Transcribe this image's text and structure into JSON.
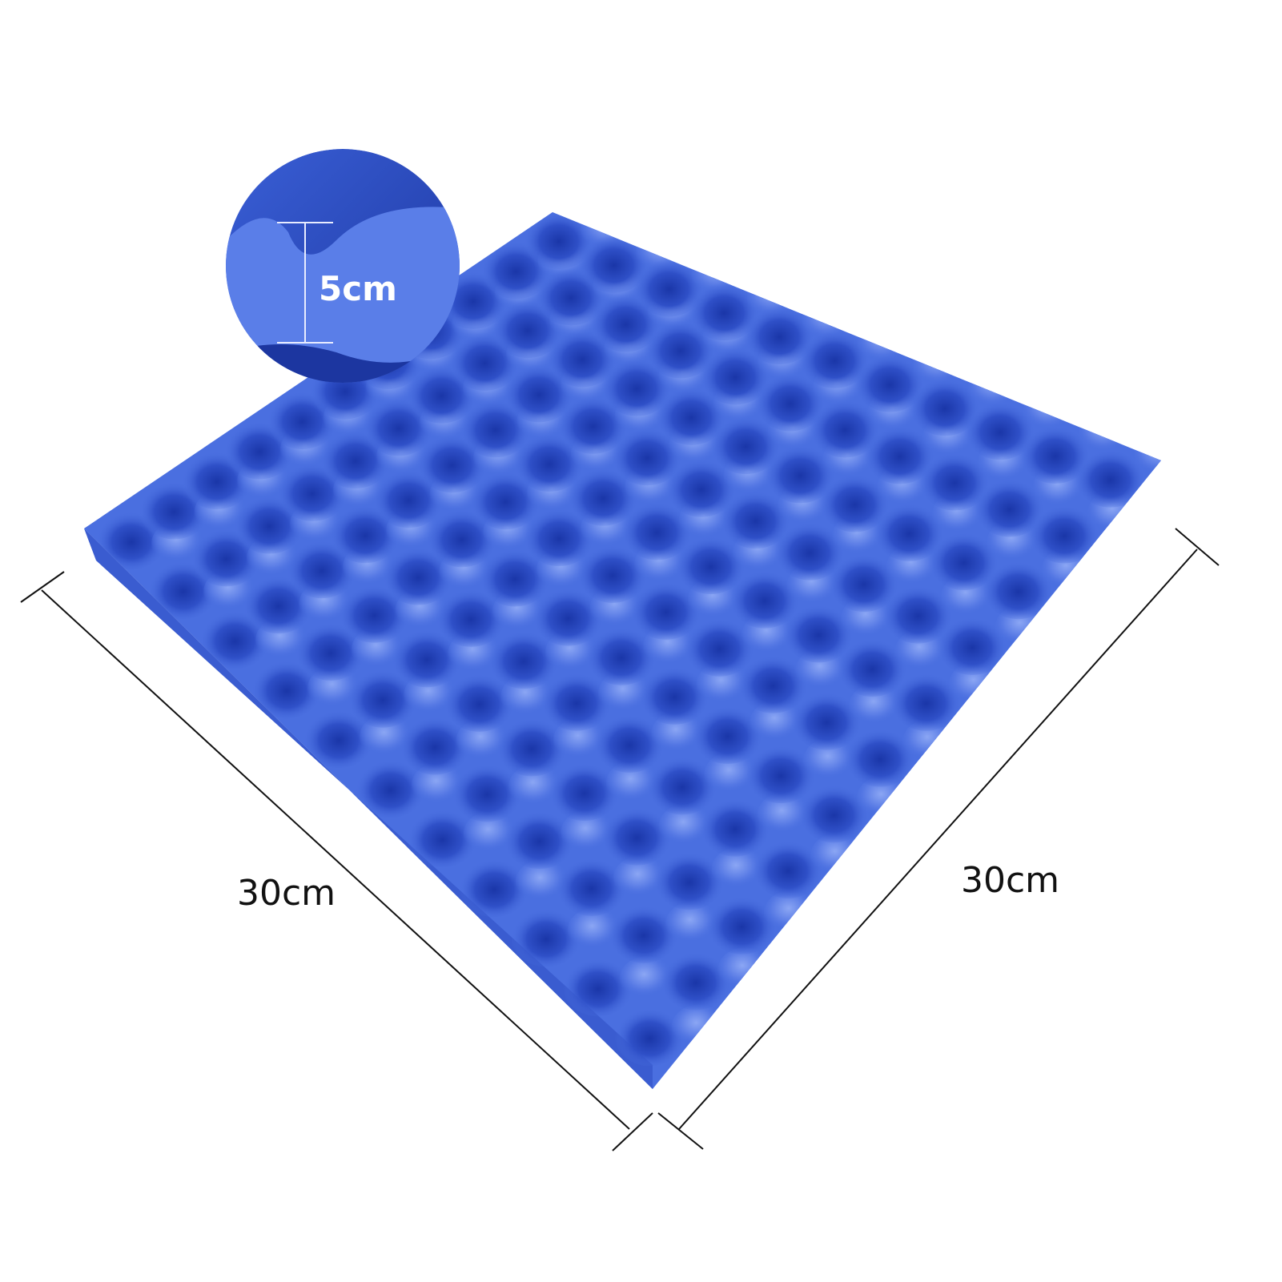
{
  "product": {
    "colors": {
      "foam": "#4a6fe0",
      "foam_dark": "#1f3fb8",
      "foam_light": "#7f9cf0",
      "line": "#111111"
    },
    "dimensions": {
      "width_label": "30cm",
      "length_label": "30cm",
      "thickness_label": "5cm"
    }
  }
}
